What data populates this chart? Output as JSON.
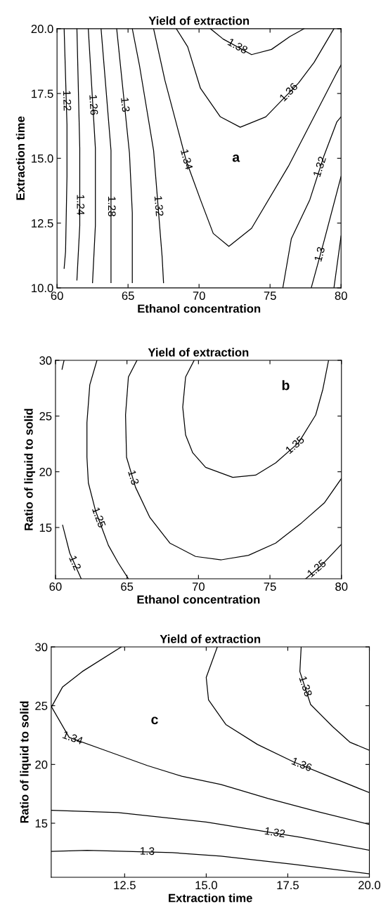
{
  "chart_data": [
    {
      "type": "line",
      "title": "Yield of extraction",
      "xlabel": "Ethanol concentration",
      "ylabel": "Extraction time",
      "xlim": [
        60,
        80
      ],
      "ylim": [
        10,
        20
      ],
      "xticks": [
        60,
        65,
        70,
        75,
        80
      ],
      "yticks": [
        {
          "value": 10,
          "label": "10.0"
        },
        {
          "value": 12.5,
          "label": "12.5"
        },
        {
          "value": 15,
          "label": "15.0"
        },
        {
          "value": 17.5,
          "label": "17.5"
        },
        {
          "value": 20,
          "label": "20.0"
        }
      ],
      "color": "#000000",
      "annotations": [
        "a"
      ],
      "series": [
        {
          "name": "1.22",
          "x": [
            60.5,
            60.7,
            60.7,
            60.6,
            60.5
          ],
          "values": [
            20,
            16.3,
            14.3,
            11.4,
            10.75
          ]
        },
        {
          "name": "1.24",
          "x": [
            61.4,
            61.6,
            61.6,
            61.4
          ],
          "values": [
            20,
            15.4,
            12.4,
            10.3
          ]
        },
        {
          "name": "1.26",
          "x": [
            62.2,
            62.7,
            62.7,
            62.5
          ],
          "values": [
            20,
            15.4,
            12.4,
            10.2
          ]
        },
        {
          "name": "1.28",
          "x": [
            63.1,
            63.8,
            63.8,
            63.8
          ],
          "values": [
            20,
            15.3,
            12.4,
            10.2
          ]
        },
        {
          "name": "1.3",
          "x": [
            64.2,
            65.1,
            65.3,
            65.3
          ],
          "values": [
            20,
            15.2,
            12.9,
            10.2
          ]
        },
        {
          "name": "1.32",
          "x": [
            65.3,
            65.8,
            66.8,
            67.4,
            67.5
          ],
          "values": [
            20,
            18.6,
            15.3,
            11.2,
            10.2
          ]
        },
        {
          "name": "1.34",
          "x": [
            66.8,
            67.6,
            69.1,
            70.1,
            71.0,
            72.1,
            73.7,
            76.3,
            79.7,
            80
          ],
          "values": [
            20,
            18.0,
            14.9,
            13.4,
            12.1,
            11.6,
            12.3,
            14.7,
            18.3,
            18.6
          ]
        },
        {
          "name": "1.36",
          "x": [
            68.4,
            69.2,
            70.1,
            71.5,
            72.9,
            74.7,
            77.0,
            78.1,
            79.5
          ],
          "values": [
            20,
            19.3,
            17.7,
            16.6,
            16.2,
            16.6,
            17.9,
            18.7,
            20
          ]
        },
        {
          "name": "1.38",
          "x": [
            70.8,
            71.7,
            73.7,
            75.1,
            76.4,
            77.4
          ],
          "values": [
            20,
            19.6,
            19.0,
            19.2,
            19.7,
            20
          ]
        },
        {
          "name": "1.32",
          "x": [
            75.9,
            76.5,
            77.8,
            78.8,
            79.7,
            80
          ],
          "values": [
            10,
            11.9,
            13.4,
            15.1,
            16.4,
            16.6
          ]
        },
        {
          "name": "1.3",
          "x": [
            77.9,
            78.8,
            80
          ],
          "values": [
            10,
            11.8,
            14.3
          ]
        },
        {
          "x": [
            79.5,
            80
          ],
          "values": [
            10,
            12.0
          ]
        }
      ]
    },
    {
      "type": "line",
      "title": "Yield of extraction",
      "xlabel": "Ethanol concentration",
      "ylabel": "Ratio of liquid to solid",
      "xlim": [
        60,
        80
      ],
      "ylim": [
        10.4,
        30
      ],
      "xticks": [
        60,
        65,
        70,
        75,
        80
      ],
      "yticks": [
        15,
        20,
        25,
        30
      ],
      "color": "#000000",
      "annotations": [
        "b"
      ],
      "series": [
        {
          "x": [
            60.46,
            60.6
          ],
          "values": [
            29.2,
            30
          ]
        },
        {
          "name": "1.25",
          "x": [
            62.9,
            62.4,
            62.2,
            62.2,
            62.3,
            62.8,
            63.7,
            64.4,
            65.1
          ],
          "values": [
            30,
            27.8,
            24.4,
            21.3,
            19.0,
            16.5,
            13.4,
            11.8,
            10.4
          ]
        },
        {
          "name": "1.3",
          "x": [
            65.7,
            65.1,
            64.9,
            64.97,
            65.6,
            66.6,
            68.0,
            69.8,
            71.6,
            73.5,
            75.4,
            77.2,
            78.8,
            80
          ],
          "values": [
            30,
            28.5,
            25.1,
            21.3,
            18.6,
            15.9,
            13.6,
            12.4,
            12.1,
            12.5,
            13.6,
            15.4,
            17.2,
            19.4
          ]
        },
        {
          "name": "1.35",
          "x": [
            69.7,
            69.1,
            68.9,
            69.1,
            69.6,
            70.5,
            72.4,
            74.0,
            75.4,
            77.0,
            78.2,
            78.7,
            79.1
          ],
          "values": [
            30,
            28.5,
            25.8,
            23.3,
            21.7,
            20.4,
            19.5,
            19.7,
            20.8,
            22.6,
            25.1,
            27.4,
            30
          ]
        },
        {
          "name": "1.25",
          "x": [
            77.5,
            78.6,
            80
          ],
          "values": [
            10.4,
            11.6,
            13.5
          ]
        },
        {
          "name": "1.2",
          "x": [
            60.5,
            61.0,
            61.8
          ],
          "values": [
            15.2,
            12.7,
            10.4
          ]
        }
      ]
    },
    {
      "type": "line",
      "title": "Yield of extraction",
      "xlabel": "Extraction time",
      "ylabel": "Ratio of liquid to solid",
      "xlim": [
        10.25,
        20
      ],
      "ylim": [
        10.4,
        30
      ],
      "xticks": [
        {
          "value": 12.5,
          "label": "12.5"
        },
        {
          "value": 15,
          "label": "15.0"
        },
        {
          "value": 17.5,
          "label": "17.5"
        },
        {
          "value": 20,
          "label": "20.0"
        }
      ],
      "yticks": [
        15,
        20,
        25,
        30
      ],
      "color": "#000000",
      "annotations": [
        "c"
      ],
      "series": [
        {
          "name": "1.3",
          "x": [
            10.26,
            11.35,
            13.96,
            15.45,
            17.69,
            20
          ],
          "values": [
            12.6,
            12.7,
            12.5,
            12.2,
            11.5,
            10.7
          ]
        },
        {
          "name": "1.32",
          "x": [
            10.26,
            12.3,
            15.0,
            17.9,
            20
          ],
          "values": [
            16.1,
            15.9,
            15.1,
            13.8,
            12.7
          ]
        },
        {
          "name": "1.34",
          "x": [
            12.4,
            11.2,
            10.6,
            10.26,
            10.8,
            11.9,
            13.2,
            14.25,
            15.45,
            16.9,
            18.4,
            20
          ],
          "values": [
            30,
            27.9,
            26.6,
            24.9,
            22.3,
            21.2,
            19.9,
            19.0,
            18.3,
            17.1,
            16.0,
            14.9
          ]
        },
        {
          "name": "1.36",
          "x": [
            15.34,
            15.0,
            15.07,
            15.6,
            16.57,
            17.69,
            18.66,
            20
          ],
          "values": [
            30,
            27.4,
            25.5,
            23.4,
            21.7,
            20.2,
            19.1,
            17.6
          ]
        },
        {
          "name": "1.38",
          "x": [
            17.91,
            17.87,
            18.2,
            18.88,
            19.4,
            20
          ],
          "values": [
            30,
            27.9,
            25.1,
            23.2,
            21.9,
            21.2
          ]
        }
      ]
    }
  ]
}
